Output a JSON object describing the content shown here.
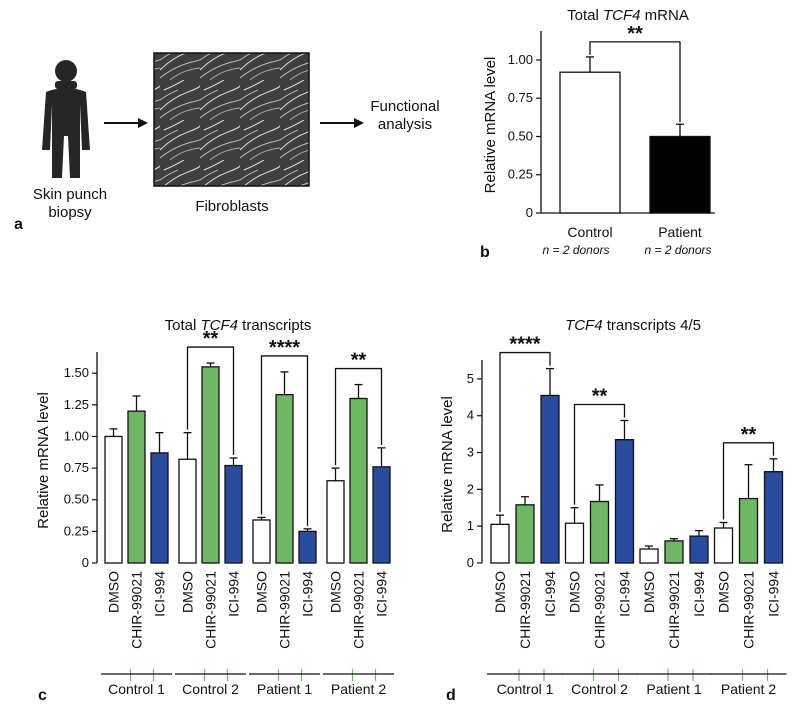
{
  "panel_a": {
    "letter": "a",
    "skin_label_line1": "Skin punch",
    "skin_label_line2": "biopsy",
    "fibroblast_label": "Fibroblasts",
    "functional_label_line1": "Functional",
    "functional_label_line2": "analysis"
  },
  "panel_b": {
    "letter": "b",
    "n_control": "n = 2 donors",
    "n_patient": "n = 2 donors"
  },
  "panel_c": {
    "letter": "c"
  },
  "panel_d": {
    "letter": "d"
  },
  "colors": {
    "dmso": "#ffffff",
    "chir": "#6fb764",
    "ici": "#2a4c9e",
    "control": "#ffffff",
    "patient": "#000000"
  },
  "chart_data": [
    {
      "id": "b",
      "type": "bar",
      "title_prefix": "Total ",
      "title_italic": "TCF4",
      "title_suffix": " mRNA",
      "ylabel": "Relative mRNA level",
      "ylim": [
        0,
        1.15
      ],
      "yticks": [
        "0",
        "0.25",
        "0.50",
        "0.75",
        "1.00"
      ],
      "categories": [
        "Control",
        "Patient"
      ],
      "values": [
        0.92,
        0.5
      ],
      "errors": [
        0.1,
        0.08
      ],
      "significance": [
        {
          "from": 0,
          "to": 1,
          "label": "**"
        }
      ]
    },
    {
      "id": "c",
      "type": "bar",
      "title_prefix": "Total ",
      "title_italic": "TCF4",
      "title_suffix": " transcripts",
      "ylabel": "Relative mRNA level",
      "ylim": [
        0,
        1.62
      ],
      "yticks": [
        "0",
        "0.25",
        "0.50",
        "0.75",
        "1.00",
        "1.25",
        "1.50"
      ],
      "groups": [
        "Control 1",
        "Control 2",
        "Patient 1",
        "Patient 2"
      ],
      "conditions": [
        "DMSO",
        "CHIR-99021",
        "ICI-994"
      ],
      "series": [
        {
          "name": "DMSO",
          "values": [
            1.0,
            0.82,
            0.34,
            0.65
          ],
          "errors": [
            0.06,
            0.21,
            0.02,
            0.1
          ]
        },
        {
          "name": "CHIR-99021",
          "values": [
            1.2,
            1.55,
            1.33,
            1.3
          ],
          "errors": [
            0.12,
            0.03,
            0.18,
            0.11
          ]
        },
        {
          "name": "ICI-994",
          "values": [
            0.87,
            0.77,
            0.25,
            0.76
          ],
          "errors": [
            0.16,
            0.06,
            0.02,
            0.15
          ]
        }
      ],
      "significance": [
        {
          "group": 1,
          "label": "**"
        },
        {
          "group": 2,
          "label": "****"
        },
        {
          "group": 3,
          "label": "**"
        }
      ]
    },
    {
      "id": "d",
      "type": "bar",
      "title_prefix": "",
      "title_italic": "TCF4",
      "title_suffix": " transcripts 4/5",
      "ylabel": "Relative mRNA level",
      "ylim": [
        0,
        5.35
      ],
      "yticks": [
        "0",
        "1",
        "2",
        "3",
        "4",
        "5"
      ],
      "groups": [
        "Control 1",
        "Control 2",
        "Patient 1",
        "Patient 2"
      ],
      "conditions": [
        "DMSO",
        "CHIR-99021",
        "ICI-994"
      ],
      "series": [
        {
          "name": "DMSO",
          "values": [
            1.05,
            1.08,
            0.38,
            0.95
          ],
          "errors": [
            0.25,
            0.42,
            0.08,
            0.15
          ]
        },
        {
          "name": "CHIR-99021",
          "values": [
            1.58,
            1.67,
            0.6,
            1.75
          ],
          "errors": [
            0.22,
            0.45,
            0.06,
            0.92
          ]
        },
        {
          "name": "ICI-994",
          "values": [
            4.55,
            3.35,
            0.73,
            2.48
          ],
          "errors": [
            0.73,
            0.52,
            0.15,
            0.35
          ]
        }
      ],
      "significance": [
        {
          "group": 0,
          "label": "****"
        },
        {
          "group": 1,
          "label": "**"
        },
        {
          "group": 3,
          "label": "**"
        }
      ]
    }
  ]
}
